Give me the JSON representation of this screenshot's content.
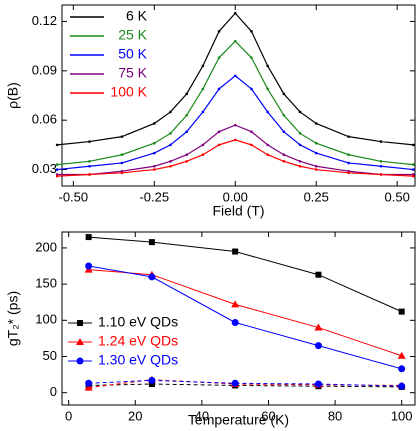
{
  "chart_data": [
    {
      "type": "scatter",
      "xlabel": "Field (T)",
      "ylabel": "ρ(B)",
      "x": [
        -0.55,
        -0.45,
        -0.35,
        -0.25,
        -0.2,
        -0.15,
        -0.1,
        -0.05,
        0,
        0.05,
        0.1,
        0.15,
        0.2,
        0.25,
        0.35,
        0.45,
        0.55
      ],
      "xlim": [
        -0.535,
        0.555
      ],
      "xticks": [
        {
          "value": -0.5,
          "label": "-0.50"
        },
        -0.25,
        {
          "value": 0,
          "label": "0.00"
        },
        0.25,
        {
          "value": 0.5,
          "label": "0.50"
        }
      ],
      "ylim": [
        0.02,
        0.13
      ],
      "yticks": [
        0.03,
        0.06,
        0.09,
        0.12
      ],
      "legend": "upper-left",
      "series": [
        {
          "name": "6 K",
          "color": "#000000",
          "values": [
            0.045,
            0.047,
            0.05,
            0.058,
            0.065,
            0.076,
            0.093,
            0.114,
            0.125,
            0.114,
            0.093,
            0.076,
            0.065,
            0.058,
            0.05,
            0.047,
            0.045
          ]
        },
        {
          "name": "25 K",
          "color": "#1a8a1a",
          "values": [
            0.033,
            0.035,
            0.039,
            0.046,
            0.052,
            0.063,
            0.079,
            0.098,
            0.108,
            0.098,
            0.079,
            0.063,
            0.052,
            0.046,
            0.039,
            0.035,
            0.033
          ]
        },
        {
          "name": "50 K",
          "color": "#0000ff",
          "values": [
            0.03,
            0.032,
            0.034,
            0.04,
            0.045,
            0.053,
            0.065,
            0.079,
            0.087,
            0.079,
            0.065,
            0.053,
            0.045,
            0.04,
            0.034,
            0.032,
            0.03
          ]
        },
        {
          "name": "75 K",
          "color": "#800080",
          "values": [
            0.027,
            0.027,
            0.029,
            0.032,
            0.035,
            0.039,
            0.045,
            0.053,
            0.057,
            0.053,
            0.045,
            0.039,
            0.035,
            0.032,
            0.029,
            0.027,
            0.027
          ]
        },
        {
          "name": "100 K",
          "color": "#ff0000",
          "values": [
            0.026,
            0.027,
            0.028,
            0.03,
            0.032,
            0.035,
            0.039,
            0.045,
            0.048,
            0.045,
            0.039,
            0.035,
            0.032,
            0.03,
            0.028,
            0.027,
            0.026
          ]
        }
      ]
    },
    {
      "type": "line",
      "xlabel": "Temperature (K)",
      "ylabel": "gT₂* (ps)",
      "x": [
        6,
        25,
        50,
        75,
        100
      ],
      "xlim": [
        -2,
        104
      ],
      "xticks": [
        0,
        20,
        40,
        60,
        80,
        100
      ],
      "ylim": [
        -17,
        222
      ],
      "yticks": [
        0,
        50,
        100,
        150,
        200
      ],
      "legend": "lower-left",
      "series": [
        {
          "name": "1.10 eV QDs",
          "color": "#000000",
          "marker": "square",
          "values": [
            215,
            208,
            195,
            163,
            112
          ]
        },
        {
          "name": "1.24 eV QDs",
          "color": "#ff0000",
          "marker": "triangle",
          "values": [
            170,
            163,
            122,
            90,
            51
          ]
        },
        {
          "name": "1.30 eV QDs",
          "color": "#0000ff",
          "marker": "circle",
          "values": [
            175,
            160,
            97,
            65,
            33
          ]
        },
        {
          "color": "#000000",
          "marker": "square",
          "dashed": true,
          "values": [
            10,
            12,
            10,
            9,
            8
          ]
        },
        {
          "color": "#ff0000",
          "marker": "triangle",
          "dashed": true,
          "values": [
            7,
            18,
            12,
            11,
            10
          ]
        },
        {
          "color": "#0000ff",
          "marker": "circle",
          "dashed": true,
          "values": [
            13,
            17,
            13,
            12,
            9
          ]
        }
      ]
    }
  ]
}
